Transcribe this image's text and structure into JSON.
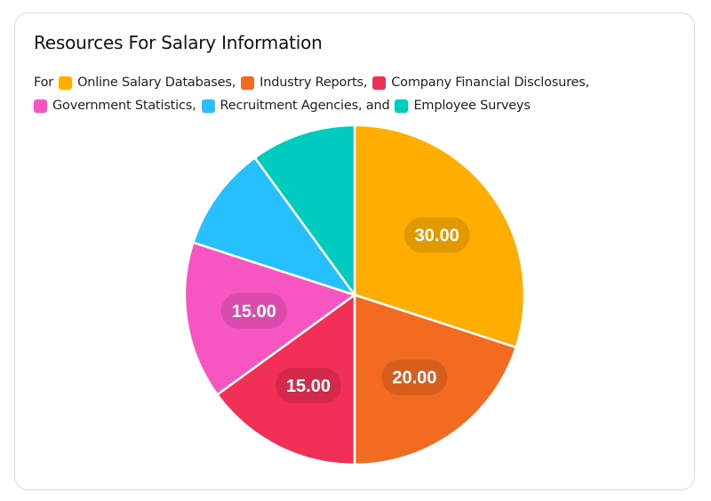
{
  "title": "Resources For Salary Information",
  "legend": {
    "prefix": "For",
    "items": [
      {
        "label": "Online Salary Databases,",
        "color": "#FFAE00"
      },
      {
        "label": "Industry Reports,",
        "color": "#F26B21"
      },
      {
        "label": "Company Financial Disclosures,",
        "color": "#F22F55"
      },
      {
        "label": "Government Statistics,",
        "color": "#F756C2"
      },
      {
        "label": "Recruitment Agencies, and",
        "color": "#26BFFF"
      },
      {
        "label": "Employee Surveys",
        "color": "#00CBBF"
      }
    ]
  },
  "chart_data": {
    "type": "pie",
    "title": "Resources For Salary Information",
    "categories": [
      "Online Salary Databases",
      "Industry Reports",
      "Company Financial Disclosures",
      "Government Statistics",
      "Recruitment Agencies",
      "Employee Surveys"
    ],
    "values": [
      30,
      20,
      15,
      15,
      10,
      10
    ],
    "colors": [
      "#FFAE00",
      "#F26B21",
      "#F22F55",
      "#F756C2",
      "#26BFFF",
      "#00CBBF"
    ],
    "data_labels": [
      "30.00",
      "20.00",
      "15.00",
      "15.00",
      "",
      ""
    ],
    "legend_position": "top",
    "start_angle_deg": 0,
    "direction": "clockwise"
  }
}
